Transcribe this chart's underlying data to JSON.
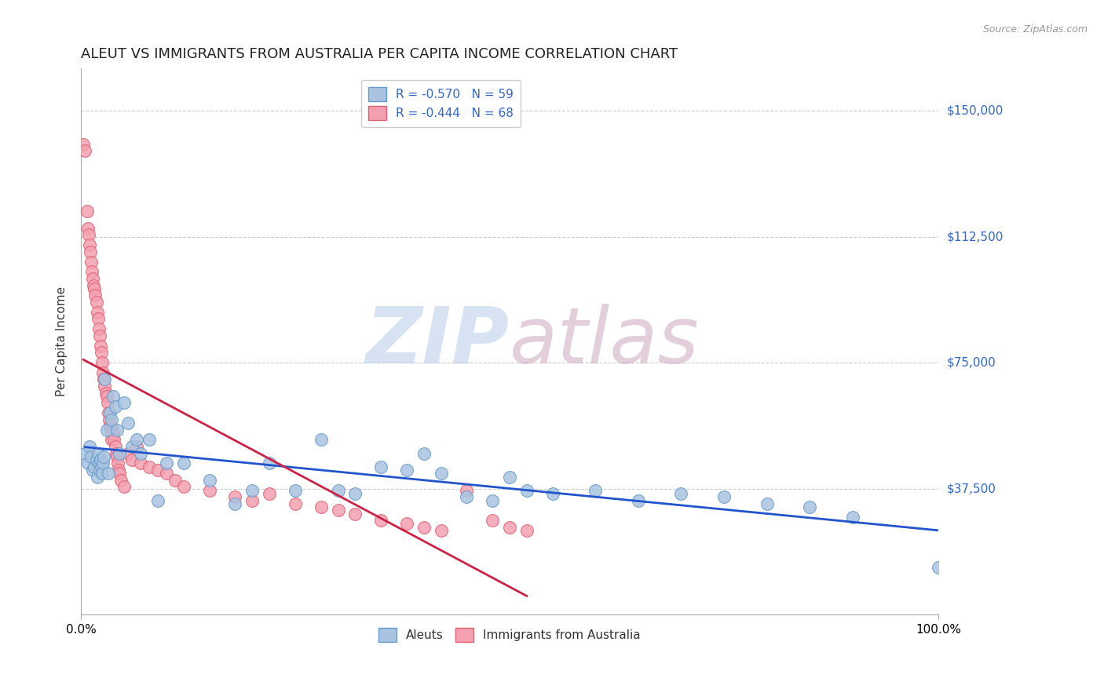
{
  "title": "ALEUT VS IMMIGRANTS FROM AUSTRALIA PER CAPITA INCOME CORRELATION CHART",
  "source": "Source: ZipAtlas.com",
  "ylabel": "Per Capita Income",
  "watermark_zip": "ZIP",
  "watermark_atlas": "atlas",
  "xlim": [
    0,
    1.0
  ],
  "ylim": [
    0,
    162500
  ],
  "yticks": [
    0,
    37500,
    75000,
    112500,
    150000
  ],
  "ytick_labels": [
    "",
    "$37,500",
    "$75,000",
    "$112,500",
    "$150,000"
  ],
  "xtick_labels": [
    "0.0%",
    "100.0%"
  ],
  "aleuts_R": "-0.570",
  "aleuts_N": "59",
  "australia_R": "-0.444",
  "australia_N": "68",
  "aleuts_color": "#a8c4e0",
  "aleuts_edge_color": "#6699cc",
  "australia_color": "#f4a0b0",
  "australia_edge_color": "#e06070",
  "trend_aleuts_color": "#2255cc",
  "trend_australia_color": "#cc2244",
  "background_color": "#ffffff",
  "grid_color": "#cccccc",
  "title_fontsize": 13,
  "axis_label_fontsize": 11,
  "tick_label_fontsize": 11,
  "legend_fontsize": 11,
  "right_tick_color": "#3366cc",
  "aleuts_x": [
    0.005,
    0.008,
    0.01,
    0.012,
    0.014,
    0.016,
    0.018,
    0.019,
    0.02,
    0.021,
    0.022,
    0.023,
    0.024,
    0.025,
    0.026,
    0.027,
    0.028,
    0.03,
    0.032,
    0.034,
    0.036,
    0.038,
    0.04,
    0.042,
    0.045,
    0.05,
    0.055,
    0.06,
    0.065,
    0.07,
    0.08,
    0.09,
    0.1,
    0.12,
    0.15,
    0.18,
    0.2,
    0.22,
    0.25,
    0.28,
    0.3,
    0.32,
    0.35,
    0.38,
    0.4,
    0.42,
    0.45,
    0.48,
    0.5,
    0.52,
    0.55,
    0.6,
    0.65,
    0.7,
    0.75,
    0.8,
    0.85,
    0.9,
    1.0
  ],
  "aleuts_y": [
    48000,
    45000,
    50000,
    47000,
    43000,
    44000,
    46000,
    41000,
    48000,
    45000,
    43000,
    46000,
    44000,
    42000,
    45000,
    47000,
    70000,
    55000,
    42000,
    60000,
    58000,
    65000,
    62000,
    55000,
    48000,
    63000,
    57000,
    50000,
    52000,
    48000,
    52000,
    34000,
    45000,
    45000,
    40000,
    33000,
    37000,
    45000,
    37000,
    52000,
    37000,
    36000,
    44000,
    43000,
    48000,
    42000,
    35000,
    34000,
    41000,
    37000,
    36000,
    37000,
    34000,
    36000,
    35000,
    33000,
    32000,
    29000,
    14000
  ],
  "australia_x": [
    0.003,
    0.005,
    0.007,
    0.008,
    0.009,
    0.01,
    0.011,
    0.012,
    0.013,
    0.014,
    0.015,
    0.016,
    0.017,
    0.018,
    0.019,
    0.02,
    0.021,
    0.022,
    0.023,
    0.024,
    0.025,
    0.026,
    0.027,
    0.028,
    0.029,
    0.03,
    0.031,
    0.032,
    0.033,
    0.034,
    0.035,
    0.036,
    0.037,
    0.038,
    0.039,
    0.04,
    0.041,
    0.042,
    0.043,
    0.044,
    0.045,
    0.047,
    0.05,
    0.055,
    0.06,
    0.065,
    0.07,
    0.08,
    0.09,
    0.1,
    0.11,
    0.12,
    0.15,
    0.18,
    0.2,
    0.22,
    0.25,
    0.28,
    0.3,
    0.32,
    0.35,
    0.38,
    0.4,
    0.42,
    0.45,
    0.48,
    0.5,
    0.52
  ],
  "australia_y": [
    140000,
    138000,
    120000,
    115000,
    113000,
    110000,
    108000,
    105000,
    102000,
    100000,
    98000,
    97000,
    95000,
    93000,
    90000,
    88000,
    85000,
    83000,
    80000,
    78000,
    75000,
    72000,
    70000,
    68000,
    66000,
    65000,
    63000,
    60000,
    58000,
    56000,
    55000,
    52000,
    55000,
    54000,
    52000,
    50000,
    48000,
    47000,
    45000,
    43000,
    42000,
    40000,
    38000,
    48000,
    46000,
    50000,
    45000,
    44000,
    43000,
    42000,
    40000,
    38000,
    37000,
    35000,
    34000,
    36000,
    33000,
    32000,
    31000,
    30000,
    28000,
    27000,
    26000,
    25000,
    37000,
    28000,
    26000,
    25000
  ]
}
